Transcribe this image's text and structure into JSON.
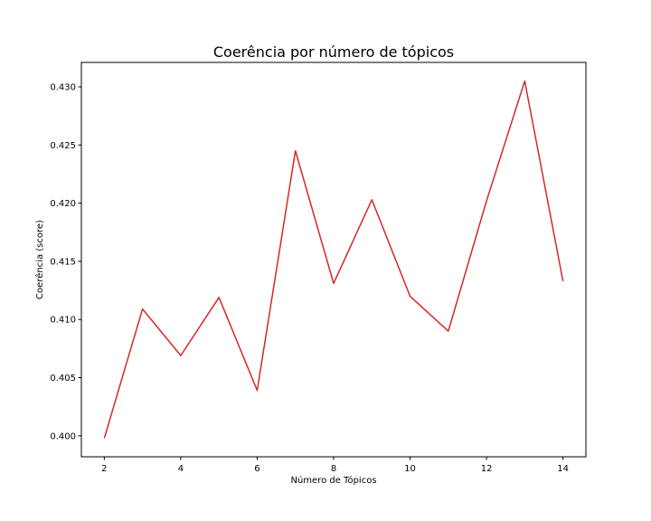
{
  "chart_data": {
    "type": "line",
    "title": "Coerência por número de tópicos",
    "xlabel": "Número de Tópicos",
    "ylabel": "Coerência (score)",
    "xlim": [
      1.4,
      14.6
    ],
    "ylim": [
      0.3982,
      0.4321
    ],
    "xticks": [
      2,
      4,
      6,
      8,
      10,
      12,
      14
    ],
    "xtick_labels": [
      "2",
      "4",
      "6",
      "8",
      "10",
      "12",
      "14"
    ],
    "yticks": [
      0.4,
      0.405,
      0.41,
      0.415,
      0.42,
      0.425,
      0.43
    ],
    "ytick_labels": [
      "0.400",
      "0.405",
      "0.410",
      "0.415",
      "0.420",
      "0.425",
      "0.430"
    ],
    "grid": false,
    "series": [
      {
        "color": "#d62728",
        "x": [
          2,
          3,
          4,
          5,
          6,
          7,
          8,
          9,
          10,
          11,
          12,
          13,
          14
        ],
        "y": [
          0.3998,
          0.4109,
          0.4069,
          0.4119,
          0.4039,
          0.4245,
          0.4131,
          0.4203,
          0.412,
          0.409,
          0.4202,
          0.4305,
          0.4133
        ]
      }
    ]
  }
}
